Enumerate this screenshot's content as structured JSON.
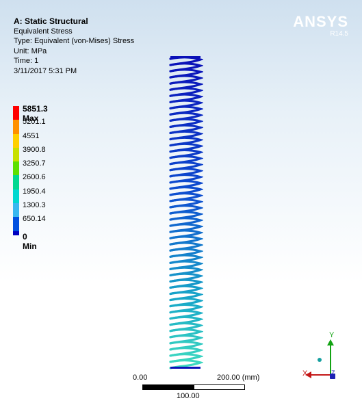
{
  "result_info": {
    "title": "A: Static Structural",
    "result_name": "Equivalent Stress",
    "type": "Type: Equivalent (von-Mises) Stress",
    "unit": "Unit: MPa",
    "time": "Time: 1",
    "date": "3/11/2017 5:31 PM"
  },
  "logo": {
    "name": "ANSYS",
    "version": "R14.5"
  },
  "legend": {
    "max_label": "5851.3 Max",
    "levels": [
      "5201.1",
      "4551",
      "3900.8",
      "3250.7",
      "2600.6",
      "1950.4",
      "1300.3",
      "650.14"
    ],
    "min_label": "0 Min",
    "colors": [
      "#ff0000",
      "#ff9000",
      "#ffd000",
      "#c8e000",
      "#5ee000",
      "#00d890",
      "#00d8d0",
      "#38b8f0",
      "#0050e0",
      "#0000c0"
    ]
  },
  "scale": {
    "left": "0.00",
    "right": "200.00 (mm)",
    "mid": "100.00"
  },
  "triad": {
    "x": "X",
    "y": "Y",
    "z": "Z"
  }
}
